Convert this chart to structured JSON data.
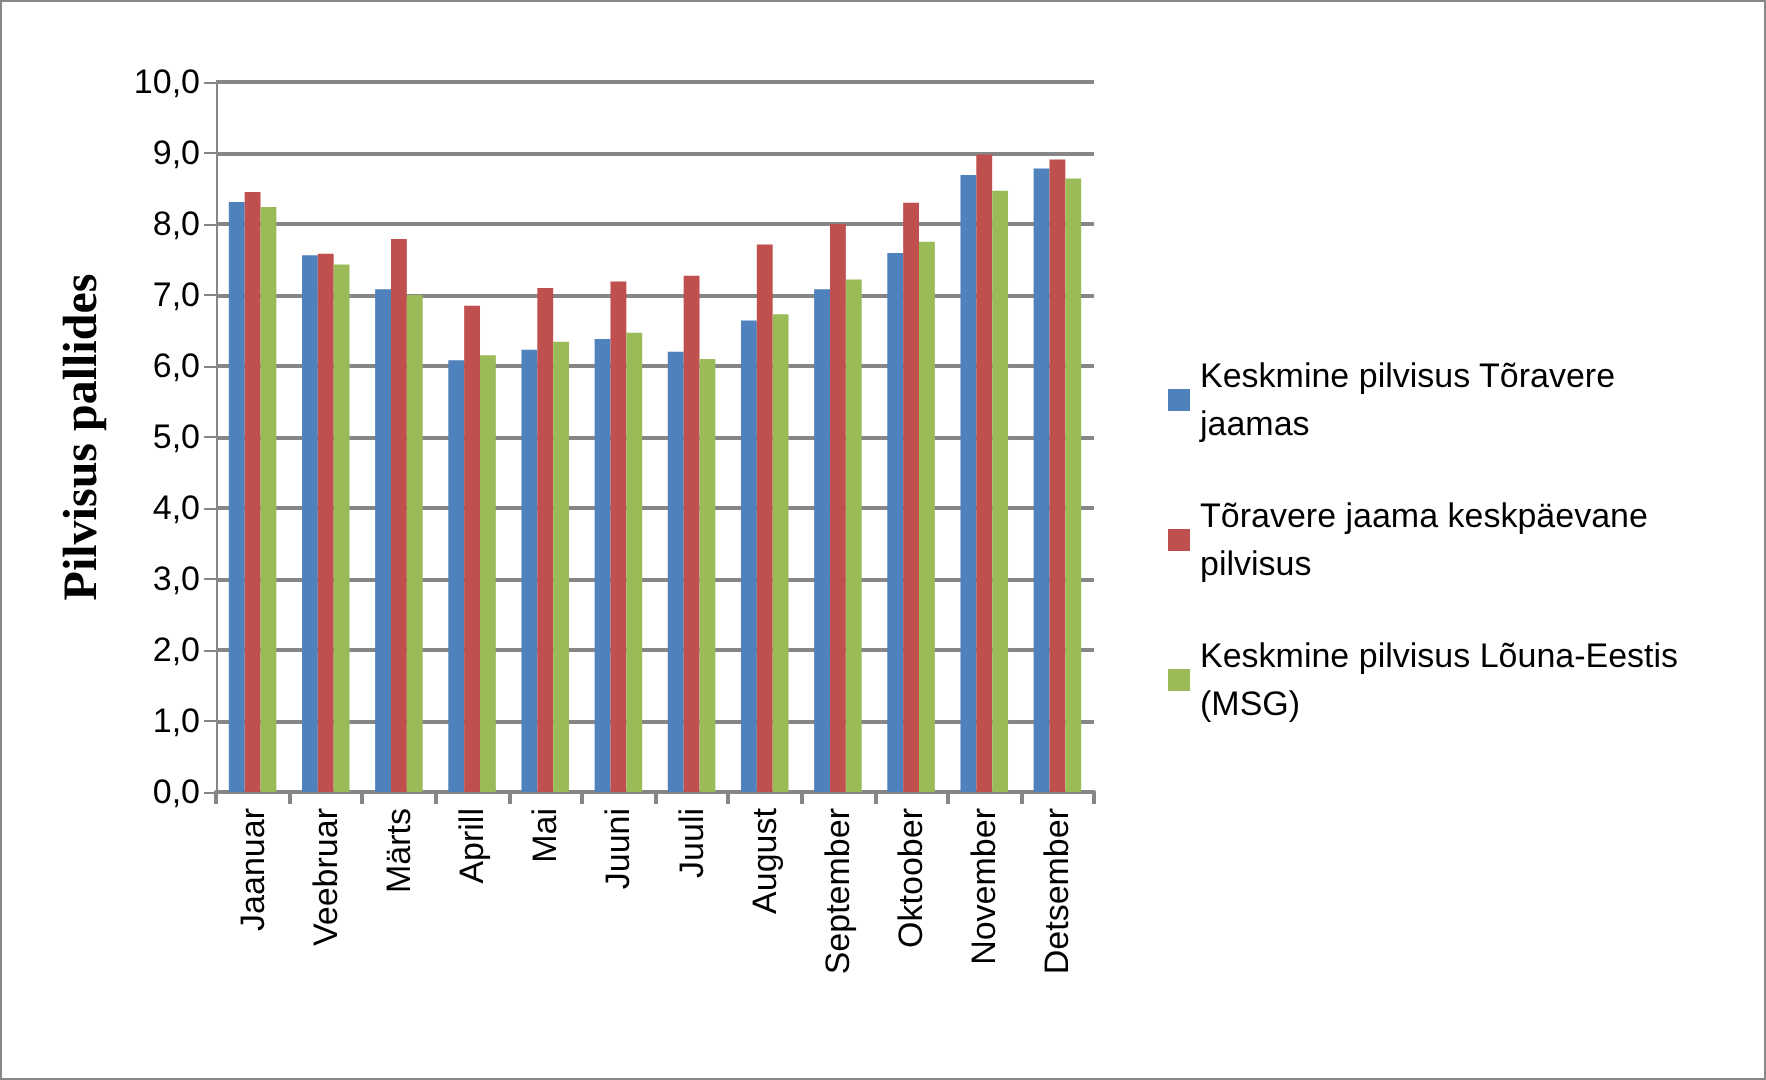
{
  "chart_data": {
    "type": "bar",
    "ylabel": "Pilvisus pallides",
    "categories": [
      "Jaanuar",
      "Veebruar",
      "Märts",
      "Aprill",
      "Mai",
      "Juuni",
      "Juuli",
      "August",
      "September",
      "Oktoober",
      "November",
      "Detsember"
    ],
    "series": [
      {
        "name": "Keskmine pilvisus Tõravere jaamas",
        "color": "#4f81bd",
        "values": [
          8.31,
          7.56,
          7.08,
          6.08,
          6.23,
          6.38,
          6.2,
          6.64,
          7.08,
          7.59,
          8.69,
          8.78
        ]
      },
      {
        "name": "Tõravere jaama keskpäevane pilvisus",
        "color": "#c0504d",
        "values": [
          8.45,
          7.58,
          7.79,
          6.85,
          7.1,
          7.19,
          7.27,
          7.71,
          8.0,
          8.3,
          8.98,
          8.91
        ]
      },
      {
        "name": "Keskmine pilvisus Lõuna-Eestis (MSG)",
        "color": "#9bbb59",
        "values": [
          8.24,
          7.43,
          7.0,
          6.15,
          6.34,
          6.47,
          6.1,
          6.73,
          7.22,
          7.75,
          8.47,
          8.64
        ]
      }
    ],
    "ylim": [
      0,
      10
    ],
    "yticks": [
      {
        "value": 0,
        "label": "0,0"
      },
      {
        "value": 1,
        "label": "1,0"
      },
      {
        "value": 2,
        "label": "2,0"
      },
      {
        "value": 3,
        "label": "3,0"
      },
      {
        "value": 4,
        "label": "4,0"
      },
      {
        "value": 5,
        "label": "5,0"
      },
      {
        "value": 6,
        "label": "6,0"
      },
      {
        "value": 7,
        "label": "7,0"
      },
      {
        "value": 8,
        "label": "8,0"
      },
      {
        "value": 9,
        "label": "9,0"
      },
      {
        "value": 10,
        "label": "10,0"
      }
    ],
    "grid": "y",
    "legend": "right"
  }
}
